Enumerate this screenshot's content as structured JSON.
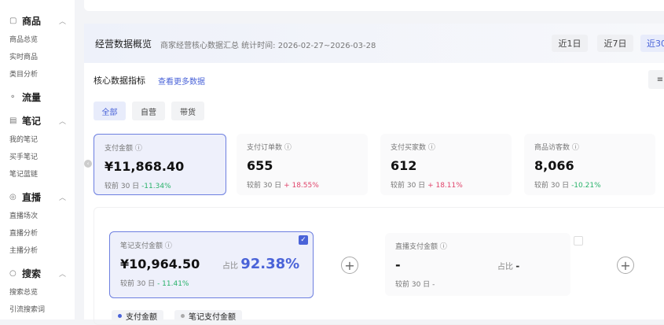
{
  "sidebar": {
    "groups": [
      {
        "label": "商品",
        "icon": "bag-icon",
        "items": [
          "商品总览",
          "实时商品",
          "类目分析"
        ]
      },
      {
        "label": "流量",
        "icon": "nodes-icon",
        "items": []
      },
      {
        "label": "笔记",
        "icon": "note-icon",
        "items": [
          "我的笔记",
          "买手笔记",
          "笔记蓝链"
        ]
      },
      {
        "label": "直播",
        "icon": "play-icon",
        "items": [
          "直播场次",
          "直播分析",
          "主播分析"
        ]
      },
      {
        "label": "搜索",
        "icon": "search-icon",
        "items": [
          "搜索总览",
          "引流搜索词"
        ]
      }
    ]
  },
  "header": {
    "title": "经营数据概览",
    "subtitle": "商家经营核心数据汇总 统计时间: 2026-02-27~2026-03-28",
    "ranges": [
      "近1日",
      "近7日",
      "近30"
    ],
    "active_range": "近30"
  },
  "core": {
    "title": "核心数据指标",
    "more_link": "查看更多数据",
    "right_button": "≡",
    "tabs": [
      "全部",
      "自营",
      "带货"
    ],
    "active_tab": "全部",
    "metrics": [
      {
        "label": "支付金额",
        "value": "¥11,868.40",
        "compare": "较前 30 日",
        "change": "-11.34%",
        "trend": "down"
      },
      {
        "label": "支付订单数",
        "value": "655",
        "compare": "较前 30 日",
        "change": "+ 18.55%",
        "trend": "up"
      },
      {
        "label": "支付买家数",
        "value": "612",
        "compare": "较前 30 日",
        "change": "+ 18.11%",
        "trend": "up"
      },
      {
        "label": "商品访客数",
        "value": "8,066",
        "compare": "较前 30 日",
        "change": "-10.21%",
        "trend": "down"
      }
    ],
    "breakdown": [
      {
        "label": "笔记支付金额",
        "value": "¥10,964.50",
        "ratio_label": "占比",
        "ratio": "92.38%",
        "compare": "较前 30 日",
        "change": "- 11.41%",
        "checked": true
      },
      {
        "label": "直播支付金额",
        "value": "-",
        "ratio_label": "占比",
        "ratio": "-",
        "compare": "较前 30 日",
        "change": "-",
        "checked": false
      }
    ],
    "legend": [
      "支付金额",
      "笔记支付金额"
    ]
  },
  "colors": {
    "accent": "#4a63d8",
    "up": "#e0446b",
    "down": "#28b26a"
  }
}
